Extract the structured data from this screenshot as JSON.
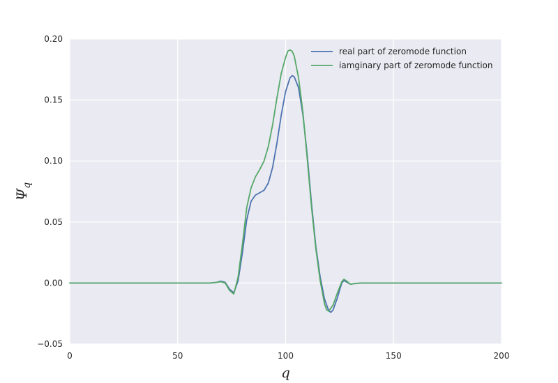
{
  "chart_data": {
    "type": "line",
    "xlabel": "q",
    "ylabel": "Ψ_q",
    "ylabel_main": "Ψ",
    "ylabel_sub": "q",
    "xlim": [
      0,
      200
    ],
    "ylim": [
      -0.05,
      0.2
    ],
    "xticks": [
      0,
      50,
      100,
      150,
      200
    ],
    "xtick_labels": [
      "0",
      "50",
      "100",
      "150",
      "200"
    ],
    "yticks": [
      -0.05,
      0.0,
      0.05,
      0.1,
      0.15,
      0.2
    ],
    "ytick_labels": [
      "−0.05",
      "0.00",
      "0.05",
      "0.10",
      "0.15",
      "0.20"
    ],
    "grid": true,
    "legend_position": "top-right",
    "series": [
      {
        "name": "real part of zeromode function",
        "color": "#4c72b0",
        "x": [
          0,
          60,
          65,
          68,
          70,
          72,
          74,
          76,
          78,
          80,
          82,
          84,
          86,
          88,
          90,
          92,
          94,
          96,
          98,
          100,
          102,
          103,
          104,
          106,
          108,
          110,
          112,
          114,
          116,
          118,
          120,
          121,
          122,
          124,
          126,
          127,
          128,
          130,
          132,
          135,
          140,
          200
        ],
        "y": [
          0,
          0,
          0,
          0.0005,
          0.0015,
          0.0005,
          -0.005,
          -0.008,
          0.002,
          0.025,
          0.052,
          0.067,
          0.072,
          0.074,
          0.076,
          0.082,
          0.095,
          0.115,
          0.138,
          0.157,
          0.168,
          0.17,
          0.169,
          0.16,
          0.138,
          0.105,
          0.065,
          0.03,
          0.005,
          -0.013,
          -0.023,
          -0.024,
          -0.022,
          -0.012,
          0.0,
          0.002,
          0.001,
          -0.001,
          -0.0005,
          0,
          0,
          0
        ]
      },
      {
        "name": "iamginary part of zeromode function",
        "color": "#55a868",
        "x": [
          0,
          60,
          65,
          68,
          70,
          72,
          74,
          76,
          78,
          80,
          82,
          84,
          86,
          88,
          90,
          92,
          94,
          96,
          98,
          100,
          101,
          102,
          103,
          104,
          106,
          108,
          110,
          112,
          114,
          116,
          118,
          119,
          120,
          122,
          124,
          126,
          127,
          128,
          130,
          132,
          135,
          140,
          200
        ],
        "y": [
          0,
          0,
          0,
          0.0005,
          0.001,
          0.0,
          -0.006,
          -0.009,
          0.005,
          0.032,
          0.062,
          0.078,
          0.087,
          0.093,
          0.1,
          0.112,
          0.13,
          0.152,
          0.172,
          0.185,
          0.19,
          0.191,
          0.19,
          0.186,
          0.168,
          0.14,
          0.102,
          0.062,
          0.028,
          0.002,
          -0.017,
          -0.022,
          -0.023,
          -0.018,
          -0.008,
          0.001,
          0.003,
          0.002,
          -0.001,
          -0.0005,
          0,
          0,
          0
        ]
      }
    ]
  }
}
